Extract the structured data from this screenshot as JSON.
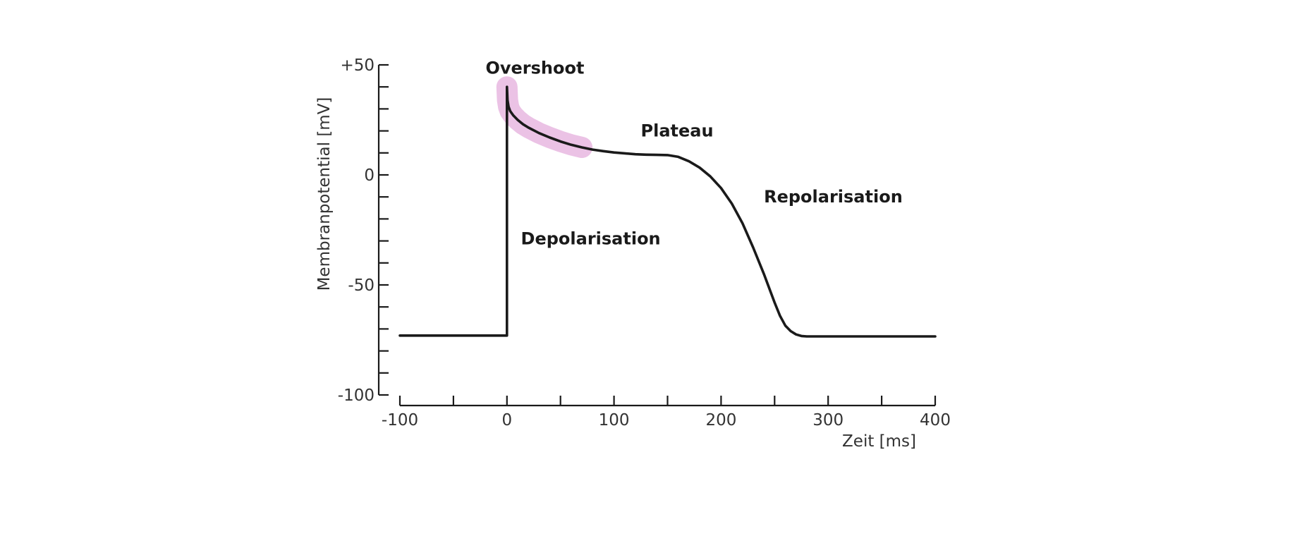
{
  "chart_data": {
    "type": "line",
    "title": "",
    "xlabel": "Zeit [ms]",
    "ylabel": "Membranpotential [mV]",
    "xlim": [
      -100,
      400
    ],
    "ylim": [
      -100,
      50
    ],
    "x_ticks": [
      {
        "value": -100,
        "label": "-100"
      },
      {
        "value": 0,
        "label": "0"
      },
      {
        "value": 100,
        "label": "100"
      },
      {
        "value": 200,
        "label": "200"
      },
      {
        "value": 300,
        "label": "300"
      },
      {
        "value": 400,
        "label": "400"
      }
    ],
    "y_ticks": [
      {
        "value": 50,
        "label": "+50"
      },
      {
        "value": 0,
        "label": "0"
      },
      {
        "value": -50,
        "label": "-50"
      },
      {
        "value": -100,
        "label": "-100"
      }
    ],
    "y_minor_step": 10,
    "x_minor_step": 50,
    "grid": false,
    "series": [
      {
        "x": [
          -100,
          0,
          0,
          0.5,
          1.5,
          3,
          6,
          10,
          15,
          20,
          30,
          40,
          50,
          60,
          70,
          80,
          90,
          100,
          110,
          120,
          130,
          140,
          150,
          160,
          170,
          180,
          190,
          200,
          210,
          220,
          230,
          240,
          250,
          255,
          260,
          265,
          270,
          275,
          280,
          285,
          290,
          300,
          320,
          350,
          400
        ],
        "y": [
          -73,
          -73,
          40,
          34,
          31,
          29,
          27,
          25,
          23,
          21.5,
          19,
          17,
          15.2,
          13.7,
          12.5,
          11.5,
          10.8,
          10.2,
          9.8,
          9.4,
          9.2,
          9.1,
          9,
          8.2,
          6.2,
          3.3,
          -0.7,
          -6,
          -13,
          -22,
          -33,
          -45,
          -58,
          -64,
          -68.5,
          -71,
          -72.5,
          -73.2,
          -73.4,
          -73.4,
          -73.4,
          -73.4,
          -73.4,
          -73.4,
          -73.4
        ]
      }
    ],
    "annotations": [
      {
        "text": "Overshoot",
        "x": -20,
        "y": 46
      },
      {
        "text": "Plateau",
        "x": 125,
        "y": 17.5
      },
      {
        "text": "Depolarisation",
        "x": 13,
        "y": -31.5
      },
      {
        "text": "Repolarisation",
        "x": 240,
        "y": -12.5
      }
    ],
    "highlight": {
      "x_range": [
        0,
        70
      ],
      "color": "#e8b7e0"
    },
    "colors": {
      "line": "#1a1a1a",
      "axis": "#1a1a1a",
      "text": "#333333"
    }
  }
}
